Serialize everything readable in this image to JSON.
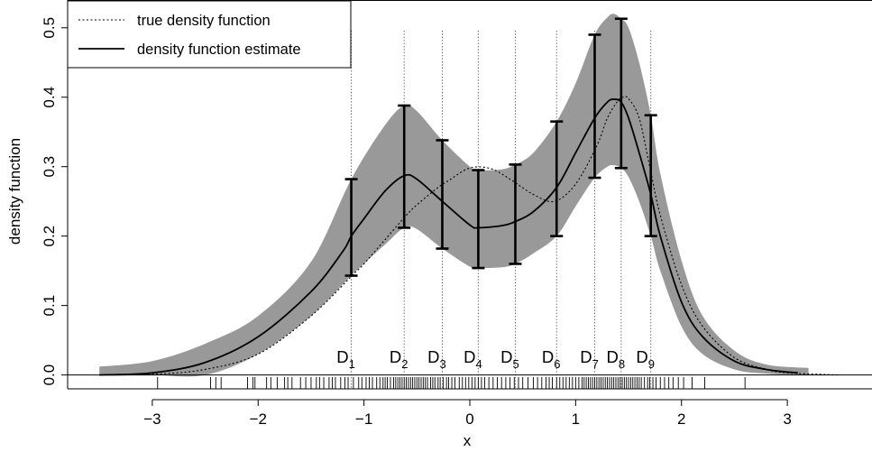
{
  "chart_data": {
    "type": "line",
    "title": "",
    "xlabel": "x",
    "ylabel": "density function",
    "xlim": [
      -3.8,
      3.8
    ],
    "ylim": [
      -0.02,
      0.54
    ],
    "x_ticks": [
      -3,
      -2,
      -1,
      0,
      1,
      2,
      3
    ],
    "x_tick_labels": [
      "−3",
      "−2",
      "−1",
      "0",
      "1",
      "2",
      "3"
    ],
    "y_ticks": [
      0.0,
      0.1,
      0.2,
      0.3,
      0.4,
      0.5
    ],
    "y_tick_labels": [
      "0.0",
      "0.1",
      "0.2",
      "0.3",
      "0.4",
      "0.5"
    ],
    "grid": false,
    "legend_position": "top-left",
    "band_color": "#999999",
    "series": [
      {
        "name": "true density function",
        "style": "dotted",
        "x": [
          -3.5,
          -3.0,
          -2.5,
          -2.0,
          -1.5,
          -1.1,
          -1.0,
          -0.8,
          -0.6,
          -0.5,
          -0.3,
          -0.2,
          0.0,
          0.2,
          0.4,
          0.6,
          0.8,
          1.0,
          1.2,
          1.3,
          1.4,
          1.45,
          1.5,
          1.6,
          1.7,
          1.8,
          2.0,
          2.2,
          2.5,
          2.8,
          3.0,
          3.3,
          3.5
        ],
        "y": [
          0.0,
          0.001,
          0.008,
          0.03,
          0.085,
          0.145,
          0.16,
          0.195,
          0.23,
          0.245,
          0.27,
          0.28,
          0.298,
          0.297,
          0.28,
          0.26,
          0.25,
          0.275,
          0.33,
          0.37,
          0.395,
          0.4,
          0.398,
          0.37,
          0.3,
          0.23,
          0.13,
          0.07,
          0.025,
          0.008,
          0.003,
          0.001,
          0.0
        ]
      },
      {
        "name": "density function estimate",
        "style": "solid",
        "x": [
          -3.5,
          -3.0,
          -2.5,
          -2.0,
          -1.5,
          -1.2,
          -1.12,
          -1.0,
          -0.8,
          -0.62,
          -0.5,
          -0.26,
          0.0,
          0.08,
          0.3,
          0.43,
          0.6,
          0.82,
          1.0,
          1.18,
          1.3,
          1.36,
          1.43,
          1.5,
          1.6,
          1.71,
          1.8,
          2.0,
          2.2,
          2.5,
          2.8,
          3.1
        ],
        "y": [
          0.0,
          0.003,
          0.018,
          0.055,
          0.12,
          0.178,
          0.2,
          0.225,
          0.265,
          0.287,
          0.282,
          0.25,
          0.216,
          0.212,
          0.215,
          0.221,
          0.235,
          0.27,
          0.32,
          0.37,
          0.393,
          0.397,
          0.393,
          0.37,
          0.32,
          0.26,
          0.2,
          0.105,
          0.055,
          0.02,
          0.008,
          0.003
        ]
      }
    ],
    "confidence_band": {
      "x": [
        -3.5,
        -3.0,
        -2.5,
        -2.0,
        -1.5,
        -1.12,
        -0.8,
        -0.62,
        -0.5,
        -0.26,
        0.0,
        0.08,
        0.3,
        0.43,
        0.6,
        0.82,
        1.0,
        1.18,
        1.3,
        1.36,
        1.43,
        1.5,
        1.6,
        1.71,
        1.8,
        2.0,
        2.2,
        2.5,
        2.8,
        3.2
      ],
      "lower": [
        0.0,
        0.0,
        0.0,
        0.03,
        0.085,
        0.143,
        0.188,
        0.212,
        0.21,
        0.182,
        0.156,
        0.154,
        0.155,
        0.16,
        0.175,
        0.2,
        0.243,
        0.284,
        0.3,
        0.302,
        0.298,
        0.285,
        0.25,
        0.2,
        0.15,
        0.07,
        0.03,
        0.008,
        0.002,
        0.0
      ],
      "upper": [
        0.012,
        0.02,
        0.045,
        0.085,
        0.163,
        0.282,
        0.36,
        0.388,
        0.38,
        0.338,
        0.3,
        0.295,
        0.296,
        0.303,
        0.32,
        0.365,
        0.42,
        0.49,
        0.515,
        0.52,
        0.513,
        0.5,
        0.45,
        0.374,
        0.29,
        0.165,
        0.085,
        0.035,
        0.015,
        0.01
      ]
    },
    "deciles": [
      {
        "main": "D",
        "sub": "1",
        "x": -1.12,
        "lower": 0.143,
        "upper": 0.282
      },
      {
        "main": "D",
        "sub": "2",
        "x": -0.62,
        "lower": 0.212,
        "upper": 0.388
      },
      {
        "main": "D",
        "sub": "3",
        "x": -0.26,
        "lower": 0.182,
        "upper": 0.338
      },
      {
        "main": "D",
        "sub": "4",
        "x": 0.08,
        "lower": 0.154,
        "upper": 0.295
      },
      {
        "main": "D",
        "sub": "5",
        "x": 0.43,
        "lower": 0.16,
        "upper": 0.303
      },
      {
        "main": "D",
        "sub": "6",
        "x": 0.82,
        "lower": 0.2,
        "upper": 0.365
      },
      {
        "main": "D",
        "sub": "7",
        "x": 1.18,
        "lower": 0.284,
        "upper": 0.49
      },
      {
        "main": "D",
        "sub": "8",
        "x": 1.43,
        "lower": 0.298,
        "upper": 0.513
      },
      {
        "main": "D",
        "sub": "9",
        "x": 1.71,
        "lower": 0.2,
        "upper": 0.374
      }
    ],
    "rug": [
      -2.95,
      -2.45,
      -2.4,
      -2.35,
      -2.1,
      -2.05,
      -2.03,
      -1.92,
      -1.88,
      -1.82,
      -1.75,
      -1.72,
      -1.68,
      -1.6,
      -1.55,
      -1.5,
      -1.45,
      -1.42,
      -1.38,
      -1.33,
      -1.3,
      -1.27,
      -1.22,
      -1.18,
      -1.15,
      -1.1,
      -1.05,
      -1.02,
      -0.98,
      -0.95,
      -0.92,
      -0.88,
      -0.85,
      -0.82,
      -0.8,
      -0.78,
      -0.75,
      -0.72,
      -0.7,
      -0.68,
      -0.66,
      -0.64,
      -0.62,
      -0.6,
      -0.58,
      -0.56,
      -0.54,
      -0.52,
      -0.5,
      -0.48,
      -0.46,
      -0.44,
      -0.42,
      -0.4,
      -0.37,
      -0.35,
      -0.33,
      -0.3,
      -0.28,
      -0.25,
      -0.22,
      -0.2,
      -0.17,
      -0.14,
      -0.1,
      -0.07,
      -0.04,
      -0.01,
      0.02,
      0.05,
      0.08,
      0.11,
      0.14,
      0.18,
      0.22,
      0.26,
      0.3,
      0.34,
      0.38,
      0.42,
      0.46,
      0.5,
      0.55,
      0.6,
      0.64,
      0.68,
      0.72,
      0.75,
      0.78,
      0.82,
      0.85,
      0.88,
      0.91,
      0.94,
      0.97,
      1.0,
      1.03,
      1.06,
      1.08,
      1.1,
      1.12,
      1.14,
      1.16,
      1.18,
      1.2,
      1.22,
      1.24,
      1.26,
      1.28,
      1.3,
      1.32,
      1.34,
      1.36,
      1.38,
      1.4,
      1.42,
      1.44,
      1.46,
      1.48,
      1.5,
      1.52,
      1.54,
      1.56,
      1.58,
      1.6,
      1.62,
      1.65,
      1.68,
      1.7,
      1.73,
      1.76,
      1.8,
      1.84,
      1.88,
      1.92,
      1.97,
      2.02,
      2.1,
      2.22,
      2.6
    ]
  }
}
